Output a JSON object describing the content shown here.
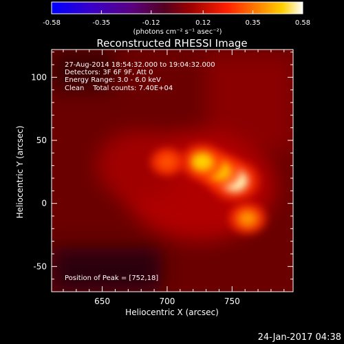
{
  "colors": {
    "background": "#000000",
    "foreground": "#ffffff"
  },
  "colorbar": {
    "ticks": [
      "-0.58",
      "-0.35",
      "-0.12",
      "0.12",
      "0.35",
      "0.58"
    ],
    "unit_label": "(photons cm⁻² s⁻¹ asec⁻²)",
    "min": -0.58,
    "max": 0.58
  },
  "chart_data": {
    "type": "heatmap",
    "title": "Reconstructed RHESSI Image",
    "xlabel": "Heliocentric X (arcsec)",
    "ylabel": "Heliocentric Y (arcsec)",
    "xlim": [
      611,
      797
    ],
    "ylim": [
      -70,
      122
    ],
    "xticks": [
      650,
      700,
      750
    ],
    "yticks": [
      -50,
      0,
      50,
      100
    ],
    "colormap": "red-temperature",
    "annotations": [
      "27-Aug-2014 18:54:32.000 to 19:04:32.000",
      "Detectors: 3F 6F 9F, Att 0",
      "Energy Range: 3.0 - 6.0 keV",
      "Clean    Total counts: 7.40E+04"
    ],
    "peak_label": "Position of Peak = [752,18]",
    "peak": [
      752,
      18
    ],
    "sources": [
      {
        "x": 752,
        "y": 18,
        "intensity": 0.58
      },
      {
        "x": 740,
        "y": 26,
        "intensity": 0.5
      },
      {
        "x": 727,
        "y": 33,
        "intensity": 0.48
      },
      {
        "x": 762,
        "y": -12,
        "intensity": 0.38
      },
      {
        "x": 700,
        "y": 33,
        "intensity": 0.32
      }
    ]
  },
  "footer": {
    "timestamp": "24-Jan-2017 04:38"
  }
}
